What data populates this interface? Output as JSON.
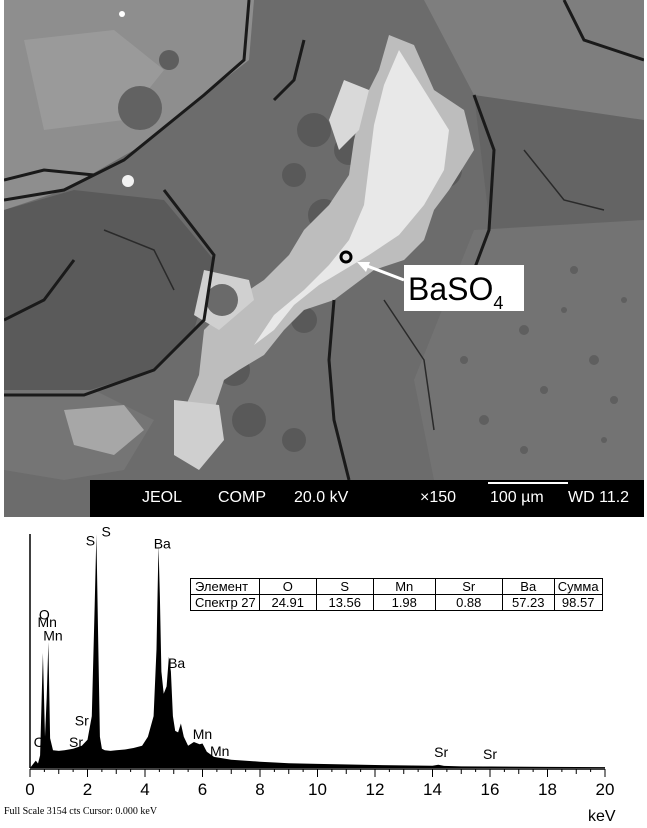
{
  "micrograph": {
    "callout_label": "BaSO",
    "callout_subscript": "4",
    "info_bar": {
      "maker": "JEOL",
      "mode": "COMP",
      "voltage": "20.0 kV",
      "magnification": "×150",
      "scale_bar": "100 µm",
      "working_distance": "WD 11.2"
    }
  },
  "composition_table": {
    "header": [
      "Элемент",
      "O",
      "S",
      "Mn",
      "Sr",
      "Ba",
      "Сумма"
    ],
    "row": [
      "Спектр 27",
      "24.91",
      "13.56",
      "1.98",
      "0.88",
      "57.23",
      "98.57"
    ]
  },
  "chart_data": {
    "type": "area",
    "xlabel": "keV",
    "xlim": [
      0,
      20
    ],
    "xticks": [
      0,
      2,
      4,
      6,
      8,
      10,
      12,
      14,
      16,
      18,
      20
    ],
    "ylim": [
      0,
      3154
    ],
    "x": [
      0.0,
      0.2,
      0.28,
      0.35,
      0.45,
      0.52,
      0.58,
      0.64,
      0.7,
      0.8,
      1.0,
      1.2,
      1.5,
      1.8,
      2.0,
      2.15,
      2.25,
      2.31,
      2.37,
      2.43,
      2.5,
      2.6,
      2.8,
      3.0,
      3.3,
      3.6,
      3.9,
      4.1,
      4.3,
      4.4,
      4.47,
      4.52,
      4.57,
      4.65,
      4.75,
      4.83,
      4.9,
      4.97,
      5.05,
      5.15,
      5.25,
      5.35,
      5.5,
      5.7,
      5.9,
      6.0,
      6.15,
      6.4,
      7.0,
      8.0,
      9.0,
      10.0,
      12.0,
      14.0,
      14.2,
      14.4,
      15.0,
      15.8,
      16.0,
      18.0,
      20.0
    ],
    "y": [
      0,
      100,
      60,
      170,
      1550,
      420,
      950,
      1700,
      400,
      240,
      230,
      240,
      260,
      300,
      380,
      700,
      2200,
      3150,
      1800,
      420,
      260,
      240,
      230,
      240,
      250,
      270,
      300,
      420,
      700,
      1600,
      3000,
      2300,
      1300,
      1000,
      1100,
      1500,
      1300,
      700,
      500,
      480,
      600,
      420,
      300,
      350,
      320,
      330,
      220,
      150,
      110,
      85,
      65,
      55,
      40,
      30,
      45,
      28,
      22,
      20,
      20,
      15,
      12
    ],
    "peak_labels": [
      {
        "text": "O",
        "x": 0.5,
        "y": 2000
      },
      {
        "text": "Mn",
        "x": 0.6,
        "y": 1900
      },
      {
        "text": "Mn",
        "x": 0.8,
        "y": 1720
      },
      {
        "text": "C",
        "x": 0.3,
        "y": 280
      },
      {
        "text": "Sr",
        "x": 1.8,
        "y": 570
      },
      {
        "text": "Sr",
        "x": 1.6,
        "y": 280
      },
      {
        "text": "S",
        "x": 2.1,
        "y": 3000
      },
      {
        "text": "S",
        "x": 2.65,
        "y": 3120
      },
      {
        "text": "Ba",
        "x": 4.6,
        "y": 2960
      },
      {
        "text": "Ba",
        "x": 5.1,
        "y": 1350
      },
      {
        "text": "Mn",
        "x": 6.0,
        "y": 390
      },
      {
        "text": "Mn",
        "x": 6.6,
        "y": 160
      },
      {
        "text": "Sr",
        "x": 14.3,
        "y": 150
      },
      {
        "text": "Sr",
        "x": 16.0,
        "y": 120
      }
    ]
  },
  "footer": {
    "text": "Full Scale 3154 cts Cursor: 0.000 keV"
  }
}
